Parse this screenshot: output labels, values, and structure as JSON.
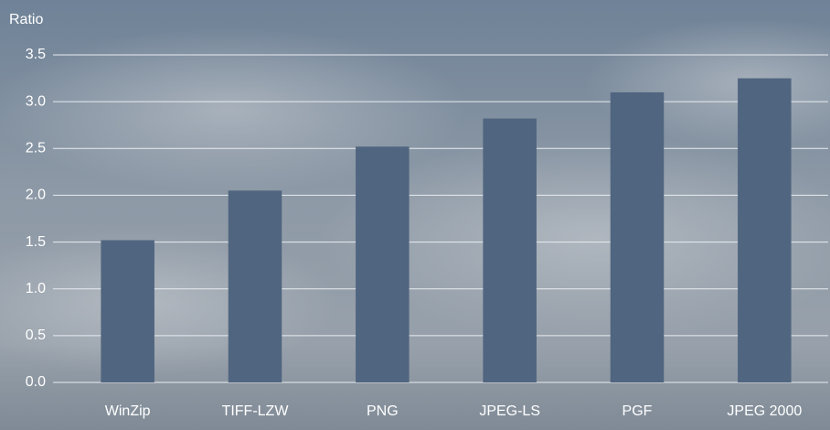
{
  "chart_data": {
    "type": "bar",
    "y_label": "Ratio",
    "categories": [
      "WinZip",
      "TIFF-LZW",
      "PNG",
      "JPEG-LS",
      "PGF",
      "JPEG 2000"
    ],
    "values": [
      1.52,
      2.05,
      2.52,
      2.82,
      3.1,
      3.25
    ],
    "color": "#50657f",
    "ylim": [
      0,
      3.5
    ],
    "yticks": [
      {
        "value": 0,
        "label": "0.0"
      },
      0.5,
      {
        "value": 1,
        "label": "1.0"
      },
      1.5,
      {
        "value": 2,
        "label": "2.0"
      },
      2.5,
      {
        "value": 3,
        "label": "3.0"
      },
      3.5
    ],
    "grid": true
  }
}
